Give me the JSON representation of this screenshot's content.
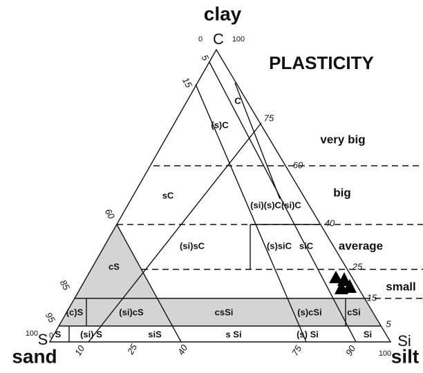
{
  "title": "PLASTICITY",
  "corners": {
    "clay": {
      "name": "clay",
      "symbol": "C",
      "min": 0,
      "max": 100
    },
    "sand": {
      "name": "sand",
      "symbol": "S",
      "min": 0,
      "max": 100
    },
    "silt": {
      "name": "silt",
      "symbol": "Si",
      "max": 100
    }
  },
  "plasticity_levels": [
    "very big",
    "big",
    "average",
    "small"
  ],
  "scale_ticks": {
    "left": [
      5,
      15,
      60,
      85,
      95
    ],
    "right": [
      75,
      60,
      40,
      25,
      15,
      5
    ],
    "bottom": [
      10,
      25,
      40,
      75,
      90
    ]
  },
  "regions": [
    "C",
    "(s)C",
    "sC",
    "(si)(s)C(si)C",
    "(si)sC",
    "(s)siC",
    "siC",
    "cS",
    "(c)S",
    "(si)cS",
    "csSi",
    "(s)cSi",
    "cSi",
    "S",
    "(si) S",
    "siS",
    "s Si",
    "(s) Si",
    "Si"
  ]
}
